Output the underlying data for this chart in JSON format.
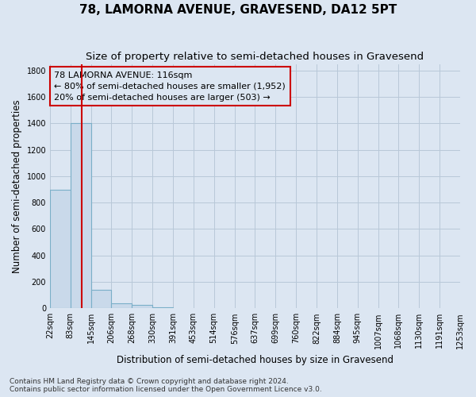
{
  "title": "78, LAMORNA AVENUE, GRAVESEND, DA12 5PT",
  "subtitle": "Size of property relative to semi-detached houses in Gravesend",
  "xlabel": "Distribution of semi-detached houses by size in Gravesend",
  "ylabel": "Number of semi-detached properties",
  "footer_line1": "Contains HM Land Registry data © Crown copyright and database right 2024.",
  "footer_line2": "Contains public sector information licensed under the Open Government Licence v3.0.",
  "bin_edges": [
    22,
    83,
    145,
    206,
    268,
    330,
    391,
    453,
    514,
    576,
    637,
    699,
    760,
    822,
    884,
    945,
    1007,
    1068,
    1130,
    1191,
    1253
  ],
  "bar_heights": [
    900,
    1400,
    140,
    35,
    25,
    10,
    0,
    0,
    0,
    0,
    0,
    0,
    0,
    0,
    0,
    0,
    0,
    0,
    0,
    0
  ],
  "bar_color": "#c9d9ea",
  "bar_edgecolor": "#7aafc8",
  "property_size": 116,
  "vline_color": "#cc0000",
  "annotation_line1": "78 LAMORNA AVENUE: 116sqm",
  "annotation_line2": "← 80% of semi-detached houses are smaller (1,952)",
  "annotation_line3": "20% of semi-detached houses are larger (503) →",
  "annotation_box_edgecolor": "#cc0000",
  "ylim": [
    0,
    1850
  ],
  "yticks": [
    0,
    200,
    400,
    600,
    800,
    1000,
    1200,
    1400,
    1600,
    1800
  ],
  "plot_bg_color": "#dce6f2",
  "fig_bg_color": "#dce6f2",
  "grid_color": "#b8c8d8",
  "title_fontsize": 11,
  "subtitle_fontsize": 9.5,
  "axis_label_fontsize": 8.5,
  "tick_fontsize": 7,
  "footer_fontsize": 6.5,
  "annotation_fontsize": 8
}
